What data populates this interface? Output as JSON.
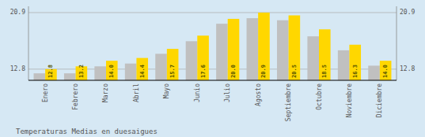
{
  "chart_data": {
    "type": "bar",
    "title": "Temperaturas Medias en duesaigues",
    "categories": [
      "Enero",
      "Febrero",
      "Marzo",
      "Abril",
      "Mayo",
      "Junio",
      "Julio",
      "Agosto",
      "Septiembre",
      "Octubre",
      "Noviembre",
      "Diciembre"
    ],
    "series": [
      {
        "color": "#C0C0C0",
        "values": [
          12.2,
          12.2,
          13.2,
          13.6,
          15.0,
          16.8,
          19.3,
          20.1,
          19.8,
          17.5,
          15.5,
          13.3
        ]
      },
      {
        "color": "#FFD700",
        "values": [
          12.8,
          13.2,
          14.0,
          14.4,
          15.7,
          17.6,
          20.0,
          20.9,
          20.5,
          18.5,
          16.3,
          14.0
        ],
        "value_labels": [
          "12.8",
          "13.2",
          "14.0",
          "14.4",
          "15.7",
          "17.6",
          "20.0",
          "20.9",
          "20.5",
          "18.5",
          "16.3",
          "14.0"
        ],
        "data_labels": true
      }
    ],
    "ylim": [
      11.2,
      21.8
    ],
    "yticks": [
      12.8,
      20.9
    ],
    "y2lim": [
      11.2,
      21.8
    ],
    "y2ticks": [
      12.8,
      20.9
    ],
    "grid": true
  }
}
